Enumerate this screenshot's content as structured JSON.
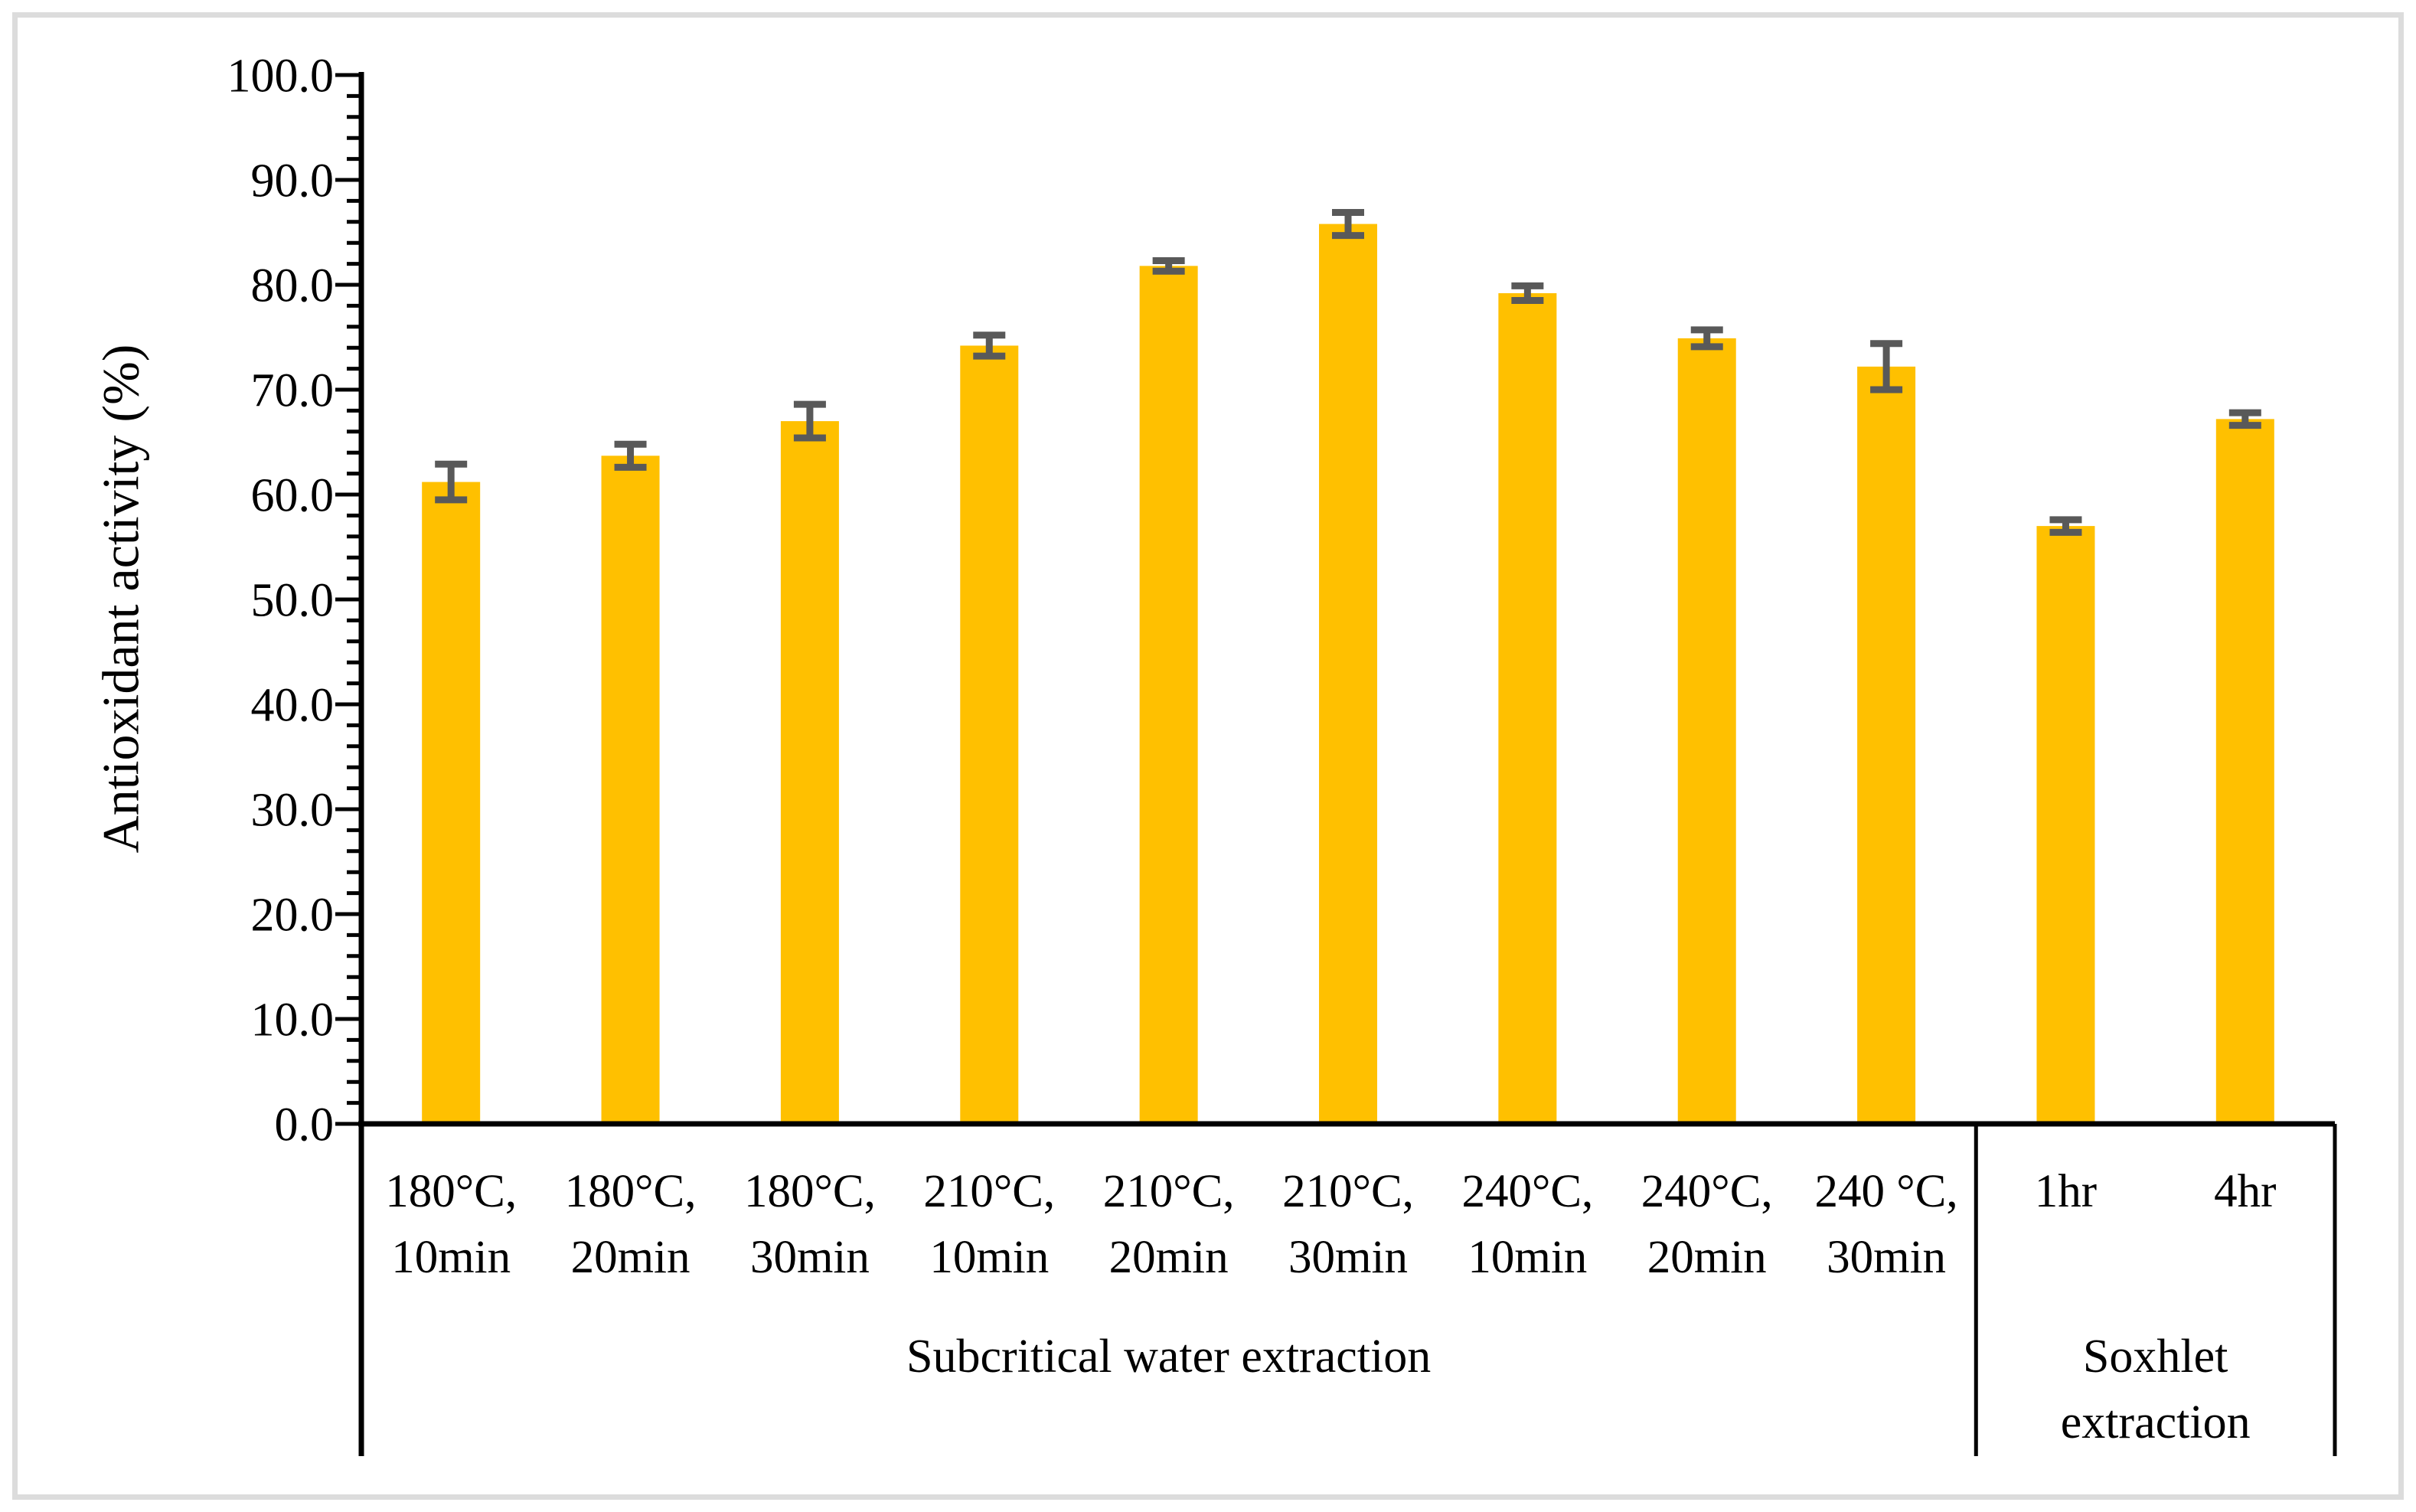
{
  "window": {
    "background": "#ffffff",
    "frame_border_color": "#dcdcdc"
  },
  "chart_data": {
    "type": "bar",
    "title": "",
    "xlabel": "",
    "ylabel": "Antioxidant activity (%)",
    "ylim": [
      0.0,
      100.0
    ],
    "ytick_step": 10,
    "ytick_minor_step": 2,
    "ytick_labels": [
      "0.0",
      "10.0",
      "20.0",
      "30.0",
      "40.0",
      "50.0",
      "60.0",
      "70.0",
      "80.0",
      "90.0",
      "100.0"
    ],
    "grid": false,
    "legend": false,
    "bar_color": "#FFC000",
    "error_bar_color": "#595959",
    "axis_color": "#000000",
    "series_name": "Antioxidant activity (%)",
    "categories": [
      {
        "line1": "180°C,",
        "line2": "10min",
        "group": 0,
        "value": 61.2,
        "error": 1.7
      },
      {
        "line1": "180°C,",
        "line2": "20min",
        "group": 0,
        "value": 63.7,
        "error": 1.1
      },
      {
        "line1": "180°C,",
        "line2": "30min",
        "group": 0,
        "value": 67.0,
        "error": 1.6
      },
      {
        "line1": "210°C,",
        "line2": "10min",
        "group": 0,
        "value": 74.2,
        "error": 1.0
      },
      {
        "line1": "210°C,",
        "line2": "20min",
        "group": 0,
        "value": 81.8,
        "error": 0.5
      },
      {
        "line1": "210°C,",
        "line2": "30min",
        "group": 0,
        "value": 85.8,
        "error": 1.1
      },
      {
        "line1": "240°C,",
        "line2": "10min",
        "group": 0,
        "value": 79.2,
        "error": 0.7
      },
      {
        "line1": "240°C,",
        "line2": "20min",
        "group": 0,
        "value": 74.9,
        "error": 0.8
      },
      {
        "line1": "240 °C,",
        "line2": "30min",
        "group": 0,
        "value": 72.2,
        "error": 2.2
      },
      {
        "line1": "1hr",
        "line2": "",
        "group": 1,
        "value": 57.0,
        "error": 0.6
      },
      {
        "line1": "4hr",
        "line2": "",
        "group": 1,
        "value": 67.2,
        "error": 0.6
      }
    ],
    "groups": [
      {
        "label_lines": [
          "Subcritical water extraction"
        ],
        "span": 9
      },
      {
        "label_lines": [
          "Soxhlet",
          "extraction"
        ],
        "span": 2
      }
    ]
  }
}
